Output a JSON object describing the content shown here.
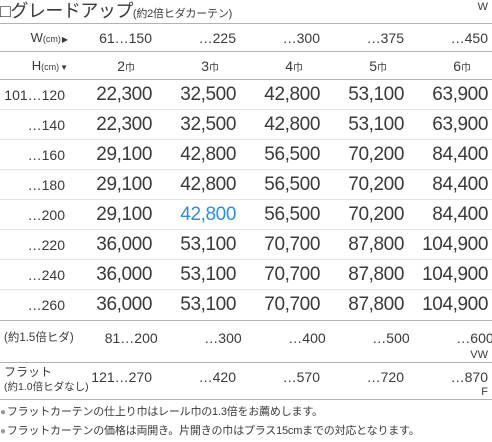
{
  "title": {
    "main": "□グレードアップ",
    "sub": "(約2倍ヒダカーテン)",
    "code": "W"
  },
  "header": {
    "width_label": {
      "letter": "W",
      "unit": "(cm)",
      "arrow": "▶"
    },
    "height_label": {
      "letter": "H",
      "unit": "(cm)",
      "arrow": "▼"
    },
    "widths": [
      "61…150",
      "…225",
      "…300",
      "…375",
      "…450"
    ],
    "panels": [
      {
        "count": "2",
        "unit": "巾"
      },
      {
        "count": "3",
        "unit": "巾"
      },
      {
        "count": "4",
        "unit": "巾"
      },
      {
        "count": "5",
        "unit": "巾"
      },
      {
        "count": "6",
        "unit": "巾"
      }
    ]
  },
  "rows": [
    {
      "height": "101…120",
      "prices": [
        "22,300",
        "32,500",
        "42,800",
        "53,100",
        "63,900"
      ]
    },
    {
      "height": "…140",
      "prices": [
        "22,300",
        "32,500",
        "42,800",
        "53,100",
        "63,900"
      ]
    },
    {
      "height": "…160",
      "prices": [
        "29,100",
        "42,800",
        "56,500",
        "70,200",
        "84,400"
      ]
    },
    {
      "height": "…180",
      "prices": [
        "29,100",
        "42,800",
        "56,500",
        "70,200",
        "84,400"
      ]
    },
    {
      "height": "…200",
      "prices": [
        "29,100",
        "42,800",
        "56,500",
        "70,200",
        "84,400"
      ]
    },
    {
      "height": "…220",
      "prices": [
        "36,000",
        "53,100",
        "70,700",
        "87,800",
        "104,900"
      ]
    },
    {
      "height": "…240",
      "prices": [
        "36,000",
        "53,100",
        "70,700",
        "87,800",
        "104,900"
      ]
    },
    {
      "height": "…260",
      "prices": [
        "36,000",
        "53,100",
        "70,700",
        "87,800",
        "104,900"
      ]
    }
  ],
  "highlight": {
    "row": 4,
    "column": 1
  },
  "variants": [
    {
      "label": "(約1.5倍ヒダ)",
      "widths": [
        "81…200",
        "…300",
        "…400",
        "…500",
        "…600"
      ],
      "code": "VW"
    },
    {
      "label": "フラット",
      "note": "(約1.0倍ヒダなし)",
      "widths": [
        "121…270",
        "…420",
        "…570",
        "…720",
        "…870"
      ],
      "code": "F"
    }
  ],
  "notes": [
    {
      "bullet": "●",
      "text": "フラットカーテンの仕上り巾はレール巾の1.3倍をお薦めします。"
    },
    {
      "bullet": "●",
      "text": "フラットカーテンの価格は両開き。片開きの巾はプラス15cmまでの対応となります。"
    }
  ],
  "colors": {
    "text": "#3a3a3a",
    "accent": "#2e8ed6",
    "rule": "#b3b3b3"
  }
}
